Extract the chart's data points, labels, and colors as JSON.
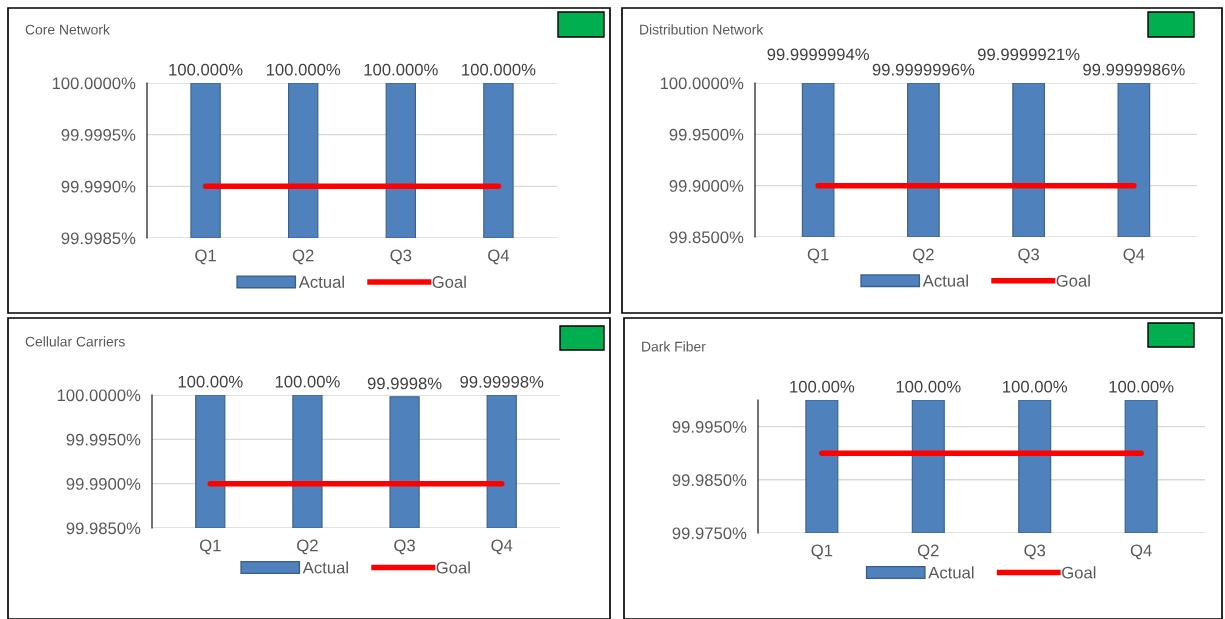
{
  "chart_data": [
    {
      "type": "bar",
      "title": "Core Network",
      "categories": [
        "Q1",
        "Q2",
        "Q3",
        "Q4"
      ],
      "ylim": [
        99.9985,
        100.0
      ],
      "yticks": [
        {
          "value": 99.9985,
          "label": "99.9985%"
        },
        {
          "value": 99.999,
          "label": "99.9990%"
        },
        {
          "value": 99.9995,
          "label": "99.9995%"
        },
        {
          "value": 100.0,
          "label": "100.0000%"
        }
      ],
      "grid": "y",
      "legend": "bottom",
      "series": [
        {
          "name": "Actual",
          "color": "#4f81bd",
          "values": [
            100.0,
            100.0,
            100.0,
            100.0
          ],
          "value_labels": [
            "100.000%",
            "100.000%",
            "100.000%",
            "100.000%"
          ]
        },
        {
          "name": "Goal",
          "type": "line",
          "color": "#ff0000",
          "values": [
            99.999,
            99.999,
            99.999,
            99.999
          ]
        }
      ]
    },
    {
      "type": "bar",
      "title": "Distribution Network",
      "categories": [
        "Q1",
        "Q2",
        "Q3",
        "Q4"
      ],
      "ylim": [
        99.85,
        100.0
      ],
      "yticks": [
        {
          "value": 99.85,
          "label": "99.8500%"
        },
        {
          "value": 99.9,
          "label": "99.9000%"
        },
        {
          "value": 99.95,
          "label": "99.9500%"
        },
        {
          "value": 100.0,
          "label": "100.0000%"
        }
      ],
      "grid": "y",
      "legend": "bottom",
      "series": [
        {
          "name": "Actual",
          "color": "#4f81bd",
          "values": [
            99.9999994,
            99.9999996,
            99.9999921,
            99.9999986
          ],
          "value_labels": [
            "99.9999994%",
            "99.9999996%",
            "99.9999921%",
            "99.9999986%"
          ]
        },
        {
          "name": "Goal",
          "type": "line",
          "color": "#ff0000",
          "values": [
            99.9,
            99.9,
            99.9,
            99.9
          ]
        }
      ]
    },
    {
      "type": "bar",
      "title": "Cellular Carriers",
      "categories": [
        "Q1",
        "Q2",
        "Q3",
        "Q4"
      ],
      "ylim": [
        99.985,
        100.0
      ],
      "yticks": [
        {
          "value": 99.985,
          "label": "99.9850%"
        },
        {
          "value": 99.99,
          "label": "99.9900%"
        },
        {
          "value": 99.995,
          "label": "99.9950%"
        },
        {
          "value": 100.0,
          "label": "100.0000%"
        }
      ],
      "grid": "y",
      "legend": "bottom",
      "series": [
        {
          "name": "Actual",
          "color": "#4f81bd",
          "values": [
            100.0,
            100.0,
            99.9998,
            99.99998
          ],
          "value_labels": [
            "100.00%",
            "100.00%",
            "99.9998%",
            "99.99998%"
          ]
        },
        {
          "name": "Goal",
          "type": "line",
          "color": "#ff0000",
          "values": [
            99.99,
            99.99,
            99.99,
            99.99
          ]
        }
      ]
    },
    {
      "type": "bar",
      "title": "Dark Fiber",
      "categories": [
        "Q1",
        "Q2",
        "Q3",
        "Q4"
      ],
      "ylim": [
        99.975,
        100.0
      ],
      "yticks": [
        {
          "value": 99.975,
          "label": "99.9750%"
        },
        {
          "value": 99.985,
          "label": "99.9850%"
        },
        {
          "value": 99.995,
          "label": "99.9950%"
        }
      ],
      "grid": "y",
      "legend": "bottom",
      "series": [
        {
          "name": "Actual",
          "color": "#4f81bd",
          "values": [
            100.0,
            100.0,
            100.0,
            100.0
          ],
          "value_labels": [
            "100.00%",
            "100.00%",
            "100.00%",
            "100.00%"
          ]
        },
        {
          "name": "Goal",
          "type": "line",
          "color": "#ff0000",
          "values": [
            99.99,
            99.99,
            99.99,
            99.99
          ]
        }
      ]
    }
  ]
}
